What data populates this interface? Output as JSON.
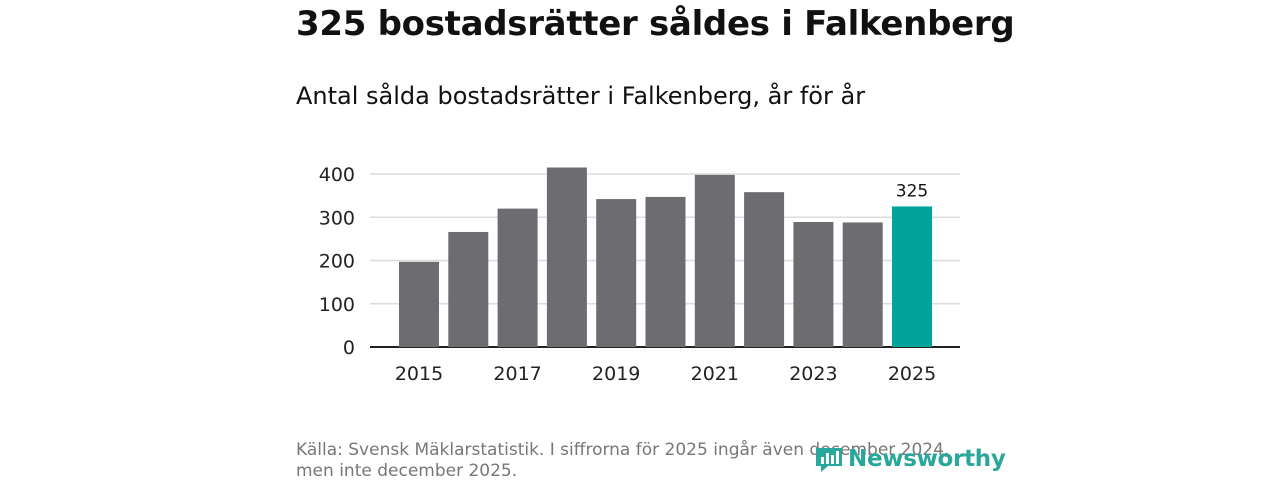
{
  "title": "325 bostadsrätter såldes i Falkenberg",
  "subtitle": "Antal sålda bostadsrätter i Falkenberg, år för år",
  "source": "Källa: Svensk Mäklarstatistik. I siffrorna för 2025 ingår även december 2024, men inte december 2025.",
  "brand": {
    "name": "Newsworthy",
    "icon": "newsworthy-logo-icon"
  },
  "colors": {
    "bar": "#6d6c71",
    "highlight": "#00a49b",
    "grid": "#dcdcdc",
    "axis": "#222222"
  },
  "chart_data": {
    "type": "bar",
    "title": "Antal sålda bostadsrätter i Falkenberg, år för år",
    "xlabel": "",
    "ylabel": "",
    "categories": [
      "2015",
      "2016",
      "2017",
      "2018",
      "2019",
      "2020",
      "2021",
      "2022",
      "2023",
      "2024",
      "2025"
    ],
    "values": [
      197,
      266,
      320,
      415,
      342,
      347,
      398,
      358,
      289,
      288,
      325
    ],
    "x_tick_labels": [
      "2015",
      "2017",
      "2019",
      "2021",
      "2023",
      "2025"
    ],
    "y_ticks": [
      0,
      100,
      200,
      300,
      400
    ],
    "ylim": [
      0,
      430
    ],
    "grid": true,
    "highlight_category": "2025",
    "data_labels": [
      {
        "category": "2025",
        "text": "325"
      }
    ]
  }
}
